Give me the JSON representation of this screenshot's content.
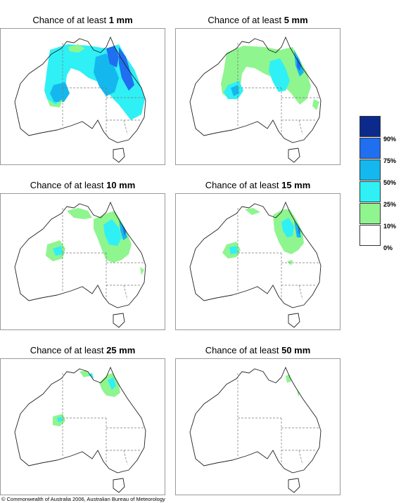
{
  "panels": [
    {
      "prefix": "Chance of at least ",
      "amount": "1 mm"
    },
    {
      "prefix": "Chance of at least ",
      "amount": "5 mm"
    },
    {
      "prefix": "Chance of at least ",
      "amount": "10 mm"
    },
    {
      "prefix": "Chance of at least ",
      "amount": "15 mm"
    },
    {
      "prefix": "Chance of at least ",
      "amount": "25 mm"
    },
    {
      "prefix": "Chance of at least ",
      "amount": "50 mm"
    }
  ],
  "legend": {
    "labels": [
      "90%",
      "75%",
      "50%",
      "25%",
      "10%",
      "0%"
    ],
    "colors": [
      "#0b2a8c",
      "#1f6ff0",
      "#14b8ee",
      "#2ff0f5",
      "#8ff58f",
      "#ffffff"
    ]
  },
  "copyright": "© Commonwealth of Australia 2006, Australian Bureau of Meteorology"
}
